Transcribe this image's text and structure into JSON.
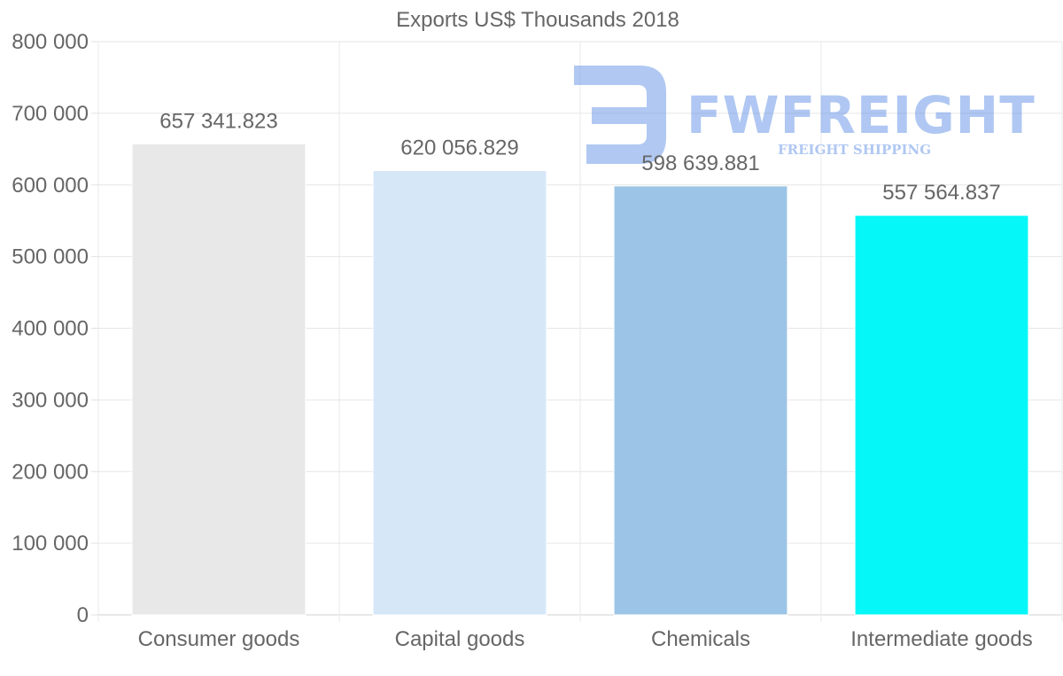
{
  "chart_data": {
    "type": "bar",
    "title": "Exports US$ Thousands 2018",
    "categories": [
      "Consumer goods",
      "Capital goods",
      "Chemicals",
      "Intermediate goods"
    ],
    "values": [
      657341.823,
      620056.829,
      598639.881,
      557564.837
    ],
    "value_labels": [
      "657 341.823",
      "620 056.829",
      "598 639.881",
      "557 564.837"
    ],
    "bar_colors": [
      "#e8e8e8",
      "#d6e8f8",
      "#9cc4e6",
      "#05f7f7"
    ],
    "ylim": [
      0,
      800000
    ],
    "y_ticks": [
      0,
      100000,
      200000,
      300000,
      400000,
      500000,
      600000,
      700000,
      800000
    ],
    "y_tick_labels": [
      "0",
      "100 000",
      "200 000",
      "300 000",
      "400 000",
      "500 000",
      "600 000",
      "700 000",
      "800 000"
    ],
    "xlabel": "",
    "ylabel": "",
    "grid": true
  },
  "watermark": {
    "brand": "FWFREIGHT",
    "tagline": "FREIGHT SHIPPING",
    "color": "#6f9ae8"
  }
}
